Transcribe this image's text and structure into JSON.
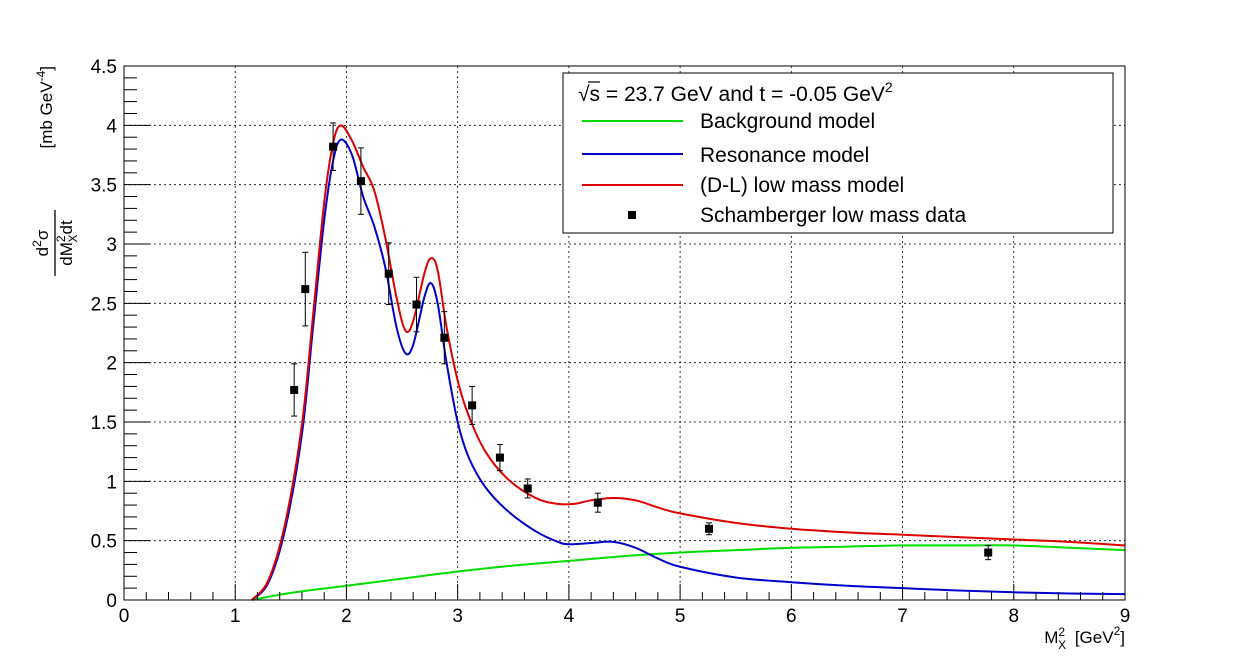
{
  "chart_data": {
    "type": "line",
    "title": "",
    "xlabel": {
      "main": "M",
      "sub": "X",
      "sup": "2",
      "unit": "[GeV",
      "unit_sup": "2",
      "unit_close": "]"
    },
    "ylabel": {
      "num_d": "d",
      "num_sup": "2",
      "num_sigma": "σ",
      "den_d": "dM",
      "den_sup": "2",
      "den_sub": "X",
      "den_dt": "dt",
      "unit": "[mb GeV",
      "unit_sup": "-4",
      "unit_close": "]"
    },
    "xlim": [
      0,
      9
    ],
    "ylim": [
      0,
      4.5
    ],
    "x_ticks": [
      0,
      1,
      2,
      3,
      4,
      5,
      6,
      7,
      8,
      9
    ],
    "x_tick_labels": [
      "0",
      "1",
      "2",
      "3",
      "4",
      "5",
      "6",
      "7",
      "8",
      "9"
    ],
    "y_ticks": [
      0,
      0.5,
      1,
      1.5,
      2,
      2.5,
      3,
      3.5,
      4,
      4.5
    ],
    "y_tick_labels": [
      "0",
      "0.5",
      "1",
      "1.5",
      "2",
      "2.5",
      "3",
      "3.5",
      "4",
      "4.5"
    ],
    "grid": true,
    "legend": {
      "position": "top-right",
      "header": {
        "sqrt": "√",
        "s_text": "s",
        "rest": " = 23.7 GeV and t = -0.05 GeV",
        "sup": "2"
      },
      "entries": [
        {
          "label": "Background model",
          "color": "#00dd00",
          "kind": "line"
        },
        {
          "label": "Resonance model",
          "color": "#0000cc",
          "kind": "line"
        },
        {
          "label": "(D-L) low mass model",
          "color": "#dd0000",
          "kind": "line"
        },
        {
          "label": "Schamberger low mass data",
          "color": "#000000",
          "kind": "marker"
        }
      ]
    },
    "series": [
      {
        "name": "Background model",
        "color": "#00dd00",
        "points": [
          [
            1.15,
            0.0
          ],
          [
            1.5,
            0.06
          ],
          [
            2.0,
            0.12
          ],
          [
            2.5,
            0.18
          ],
          [
            3.0,
            0.24
          ],
          [
            3.5,
            0.29
          ],
          [
            4.0,
            0.33
          ],
          [
            4.5,
            0.37
          ],
          [
            5.0,
            0.4
          ],
          [
            5.5,
            0.42
          ],
          [
            6.0,
            0.44
          ],
          [
            6.5,
            0.45
          ],
          [
            7.0,
            0.46
          ],
          [
            7.5,
            0.46
          ],
          [
            8.0,
            0.46
          ],
          [
            8.5,
            0.44
          ],
          [
            9.0,
            0.42
          ]
        ]
      },
      {
        "name": "Resonance model",
        "color": "#0000cc",
        "points": [
          [
            1.15,
            0.0
          ],
          [
            1.3,
            0.15
          ],
          [
            1.45,
            0.6
          ],
          [
            1.6,
            1.4
          ],
          [
            1.7,
            2.3
          ],
          [
            1.8,
            3.2
          ],
          [
            1.88,
            3.7
          ],
          [
            1.95,
            3.88
          ],
          [
            2.05,
            3.75
          ],
          [
            2.15,
            3.4
          ],
          [
            2.25,
            3.15
          ],
          [
            2.35,
            2.8
          ],
          [
            2.45,
            2.3
          ],
          [
            2.53,
            2.08
          ],
          [
            2.6,
            2.15
          ],
          [
            2.7,
            2.55
          ],
          [
            2.76,
            2.67
          ],
          [
            2.82,
            2.5
          ],
          [
            2.9,
            2.0
          ],
          [
            3.0,
            1.5
          ],
          [
            3.1,
            1.2
          ],
          [
            3.25,
            0.95
          ],
          [
            3.45,
            0.75
          ],
          [
            3.7,
            0.58
          ],
          [
            3.9,
            0.49
          ],
          [
            4.0,
            0.47
          ],
          [
            4.2,
            0.48
          ],
          [
            4.4,
            0.49
          ],
          [
            4.6,
            0.44
          ],
          [
            4.8,
            0.35
          ],
          [
            5.0,
            0.28
          ],
          [
            5.5,
            0.19
          ],
          [
            6.0,
            0.15
          ],
          [
            6.5,
            0.12
          ],
          [
            7.0,
            0.1
          ],
          [
            7.5,
            0.08
          ],
          [
            8.0,
            0.065
          ],
          [
            8.5,
            0.055
          ],
          [
            9.0,
            0.05
          ]
        ]
      },
      {
        "name": "(D-L) low mass model",
        "color": "#dd0000",
        "points": [
          [
            1.15,
            0.0
          ],
          [
            1.3,
            0.17
          ],
          [
            1.45,
            0.65
          ],
          [
            1.6,
            1.48
          ],
          [
            1.7,
            2.4
          ],
          [
            1.8,
            3.35
          ],
          [
            1.88,
            3.85
          ],
          [
            1.95,
            4.0
          ],
          [
            2.05,
            3.87
          ],
          [
            2.15,
            3.65
          ],
          [
            2.25,
            3.45
          ],
          [
            2.35,
            3.05
          ],
          [
            2.45,
            2.55
          ],
          [
            2.53,
            2.27
          ],
          [
            2.6,
            2.35
          ],
          [
            2.7,
            2.75
          ],
          [
            2.76,
            2.88
          ],
          [
            2.82,
            2.78
          ],
          [
            2.9,
            2.3
          ],
          [
            3.0,
            1.85
          ],
          [
            3.1,
            1.55
          ],
          [
            3.25,
            1.25
          ],
          [
            3.45,
            1.02
          ],
          [
            3.7,
            0.86
          ],
          [
            3.9,
            0.81
          ],
          [
            4.05,
            0.81
          ],
          [
            4.2,
            0.84
          ],
          [
            4.4,
            0.86
          ],
          [
            4.6,
            0.84
          ],
          [
            4.8,
            0.78
          ],
          [
            5.0,
            0.73
          ],
          [
            5.5,
            0.65
          ],
          [
            6.0,
            0.6
          ],
          [
            6.5,
            0.57
          ],
          [
            7.0,
            0.55
          ],
          [
            7.5,
            0.53
          ],
          [
            8.0,
            0.51
          ],
          [
            8.5,
            0.49
          ],
          [
            9.0,
            0.46
          ]
        ]
      },
      {
        "name": "Schamberger low mass data",
        "color": "#000000",
        "kind": "points",
        "points": [
          {
            "x": 1.53,
            "y": 1.77,
            "err": 0.22
          },
          {
            "x": 1.63,
            "y": 2.62,
            "err": 0.31
          },
          {
            "x": 1.88,
            "y": 3.82,
            "err": 0.2
          },
          {
            "x": 2.13,
            "y": 3.53,
            "err": 0.28
          },
          {
            "x": 2.38,
            "y": 2.75,
            "err": 0.26
          },
          {
            "x": 2.63,
            "y": 2.49,
            "err": 0.23
          },
          {
            "x": 2.88,
            "y": 2.21,
            "err": 0.22
          },
          {
            "x": 3.13,
            "y": 1.64,
            "err": 0.16
          },
          {
            "x": 3.38,
            "y": 1.2,
            "err": 0.11
          },
          {
            "x": 3.63,
            "y": 0.94,
            "err": 0.08
          },
          {
            "x": 4.26,
            "y": 0.82,
            "err": 0.08
          },
          {
            "x": 5.26,
            "y": 0.6,
            "err": 0.05
          },
          {
            "x": 7.77,
            "y": 0.4,
            "err": 0.06
          }
        ]
      }
    ]
  }
}
